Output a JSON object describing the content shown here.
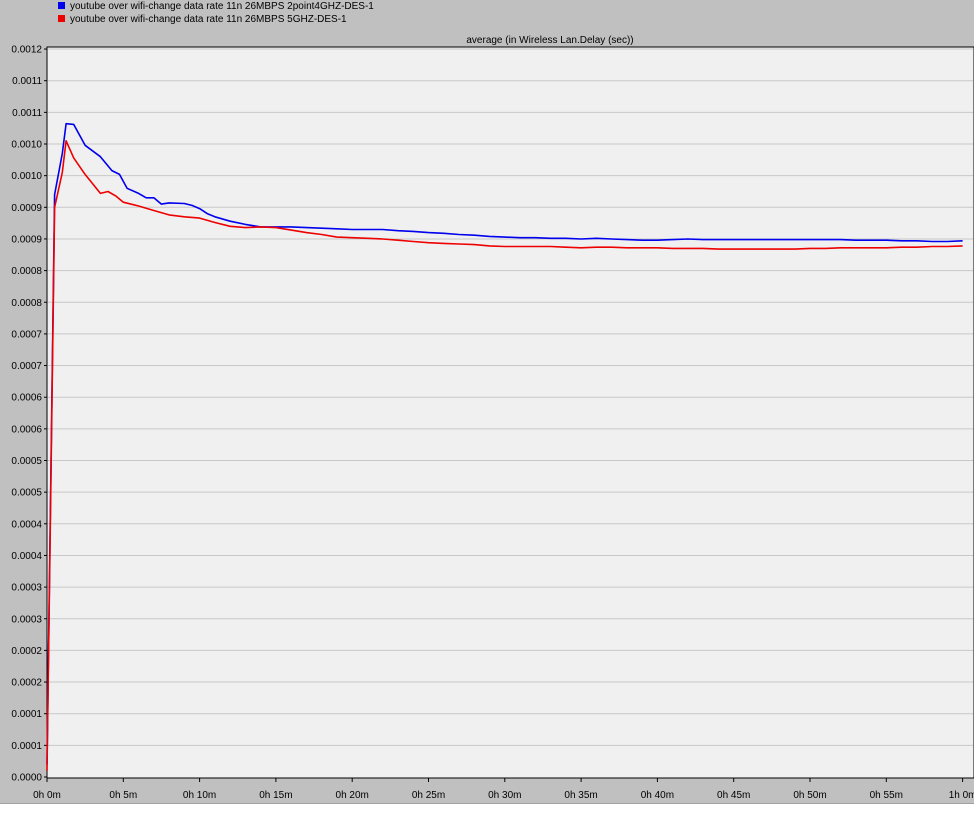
{
  "chart_data": {
    "type": "line",
    "title": "average (in Wireless Lan.Delay (sec))",
    "x_tick_labels": [
      "0h 0m",
      "0h 5m",
      "0h 10m",
      "0h 15m",
      "0h 20m",
      "0h 25m",
      "0h 30m",
      "0h 35m",
      "0h 40m",
      "0h 45m",
      "0h 50m",
      "0h 55m",
      "1h 0m"
    ],
    "y_tick_labels": [
      "0.0000",
      "0.0001",
      "0.0001",
      "0.0002",
      "0.0002",
      "0.0003",
      "0.0003",
      "0.0004",
      "0.0004",
      "0.0005",
      "0.0005",
      "0.0006",
      "0.0006",
      "0.0007",
      "0.0007",
      "0.0008",
      "0.0008",
      "0.0009",
      "0.0009",
      "0.0010",
      "0.0010",
      "0.0011",
      "0.0011",
      "0.0012"
    ],
    "xlim": [
      0,
      60
    ],
    "ylim": [
      0,
      0.00115
    ],
    "grid": true,
    "legend_position": "top-left",
    "series": [
      {
        "name": "youtube over wifi-change data rate 11n 26MBPS 2point4GHZ-DES-1",
        "color": "#0000ee",
        "x": [
          0,
          0.5,
          1,
          1.25,
          1.75,
          2.5,
          3.5,
          4.25,
          4.75,
          5.25,
          6,
          6.5,
          7,
          7.5,
          8,
          9,
          9.5,
          10,
          10.5,
          11,
          12,
          13,
          14,
          15,
          16,
          17,
          18,
          19,
          20,
          21,
          22,
          23,
          24,
          25,
          26,
          27,
          28,
          29,
          30,
          31,
          32,
          33,
          34,
          35,
          36,
          37,
          38,
          39,
          40,
          41,
          42,
          43,
          44,
          45,
          46,
          47,
          48,
          49,
          50,
          51,
          52,
          53,
          54,
          55,
          56,
          57,
          58,
          59,
          60
        ],
        "y": [
          2e-05,
          0.00092,
          0.000985,
          0.001032,
          0.001031,
          0.000998,
          0.00098,
          0.000958,
          0.000952,
          0.00093,
          0.000922,
          0.000915,
          0.000915,
          0.000905,
          0.000907,
          0.000906,
          0.000903,
          0.000898,
          0.00089,
          0.000885,
          0.000878,
          0.000873,
          0.000869,
          0.000869,
          0.000869,
          0.000868,
          0.000867,
          0.000866,
          0.000865,
          0.000865,
          0.000865,
          0.000863,
          0.000862,
          0.00086,
          0.000859,
          0.000857,
          0.000856,
          0.000854,
          0.000853,
          0.000852,
          0.000852,
          0.000851,
          0.000851,
          0.00085,
          0.000851,
          0.00085,
          0.000849,
          0.000848,
          0.000848,
          0.000849,
          0.00085,
          0.000849,
          0.000849,
          0.000849,
          0.000849,
          0.000849,
          0.000849,
          0.000849,
          0.000849,
          0.000849,
          0.000849,
          0.000848,
          0.000848,
          0.000848,
          0.000847,
          0.000847,
          0.000846,
          0.000846,
          0.000847
        ]
      },
      {
        "name": "youtube over wifi-change data rate 11n 26MBPS 5GHZ-DES-1",
        "color": "#ee0000",
        "x": [
          0,
          0.5,
          1,
          1.25,
          1.75,
          2.5,
          3.5,
          4,
          4.5,
          5,
          6,
          7,
          8,
          9,
          10,
          11,
          12,
          13,
          14,
          15,
          16,
          17,
          18,
          19,
          20,
          21,
          22,
          23,
          24,
          25,
          26,
          27,
          28,
          29,
          30,
          31,
          32,
          33,
          34,
          35,
          36,
          37,
          38,
          39,
          40,
          41,
          42,
          43,
          44,
          45,
          46,
          47,
          48,
          49,
          50,
          51,
          52,
          53,
          54,
          55,
          56,
          57,
          58,
          59,
          60
        ],
        "y": [
          1e-05,
          0.0009,
          0.000955,
          0.001005,
          0.000978,
          0.000952,
          0.000922,
          0.000925,
          0.000918,
          0.000908,
          0.000902,
          0.000895,
          0.000888,
          0.000885,
          0.000883,
          0.000876,
          0.00087,
          0.000868,
          0.000869,
          0.000868,
          0.000864,
          0.00086,
          0.000857,
          0.000853,
          0.000852,
          0.000851,
          0.00085,
          0.000848,
          0.000846,
          0.000844,
          0.000843,
          0.000842,
          0.000841,
          0.000839,
          0.000838,
          0.000838,
          0.000838,
          0.000838,
          0.000837,
          0.000836,
          0.000837,
          0.000837,
          0.000836,
          0.000836,
          0.000836,
          0.000835,
          0.000835,
          0.000835,
          0.000834,
          0.000834,
          0.000834,
          0.000834,
          0.000834,
          0.000834,
          0.000835,
          0.000835,
          0.000836,
          0.000836,
          0.000836,
          0.000836,
          0.000837,
          0.000837,
          0.000838,
          0.000838,
          0.000839
        ]
      }
    ]
  },
  "colors": {
    "plot_background": "#f0f0f0",
    "frame_background": "#c0c0c0",
    "grid": "#c8c8c8"
  }
}
